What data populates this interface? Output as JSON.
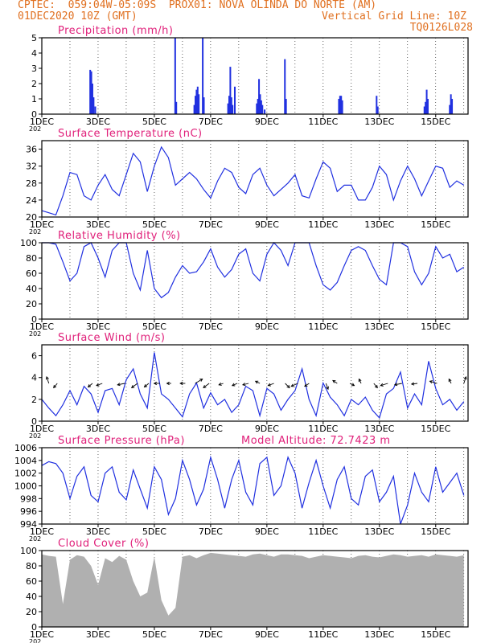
{
  "header": {
    "line1_left": "CPTEC:  059:04W-05:09S  PROX01: NOVA OLINDA DO NORTE (AM)",
    "line2_left": "01DEC2020 10Z (GMT)",
    "line2_right": "Vertical Grid Line: 10Z",
    "line3_right": "TQ0126L028"
  },
  "colors": {
    "header": "#e07020",
    "title": "#e0207a",
    "line": "#2030e0",
    "bar": "#2030e0",
    "cloud": "#b0b0b0",
    "grid": "#000000"
  },
  "x_tick_labels": [
    "1DEC",
    "3DEC",
    "5DEC",
    "7DEC",
    "9DEC",
    "11DEC",
    "13DEC",
    "15DEC"
  ],
  "x_tick_days": [
    0,
    2,
    4,
    6,
    8,
    10,
    12,
    14
  ],
  "year_fragment": "202",
  "chart_data": [
    {
      "type": "bar",
      "title": "Precipitation (mm/h)",
      "ylim": [
        0,
        5
      ],
      "yticks": [
        0,
        1,
        2,
        3,
        4,
        5
      ],
      "bars": [
        {
          "day": 1.72,
          "value": 2.9
        },
        {
          "day": 1.76,
          "value": 2.8
        },
        {
          "day": 1.8,
          "value": 2.0
        },
        {
          "day": 1.84,
          "value": 1.1
        },
        {
          "day": 1.9,
          "value": 0.5
        },
        {
          "day": 4.74,
          "value": 5.0
        },
        {
          "day": 4.78,
          "value": 0.8
        },
        {
          "day": 5.42,
          "value": 0.6
        },
        {
          "day": 5.46,
          "value": 1.2
        },
        {
          "day": 5.5,
          "value": 1.6
        },
        {
          "day": 5.54,
          "value": 1.8
        },
        {
          "day": 5.58,
          "value": 1.3
        },
        {
          "day": 5.72,
          "value": 5.0
        },
        {
          "day": 5.76,
          "value": 1.1
        },
        {
          "day": 6.62,
          "value": 0.7
        },
        {
          "day": 6.66,
          "value": 1.2
        },
        {
          "day": 6.7,
          "value": 3.1
        },
        {
          "day": 6.74,
          "value": 1.1
        },
        {
          "day": 6.78,
          "value": 0.6
        },
        {
          "day": 6.86,
          "value": 1.8
        },
        {
          "day": 7.64,
          "value": 0.7
        },
        {
          "day": 7.68,
          "value": 1.0
        },
        {
          "day": 7.72,
          "value": 2.3
        },
        {
          "day": 7.76,
          "value": 1.3
        },
        {
          "day": 7.8,
          "value": 0.9
        },
        {
          "day": 7.84,
          "value": 0.6
        },
        {
          "day": 7.92,
          "value": 0.3
        },
        {
          "day": 8.64,
          "value": 3.6
        },
        {
          "day": 8.68,
          "value": 1.0
        },
        {
          "day": 10.56,
          "value": 1.0
        },
        {
          "day": 10.6,
          "value": 1.2
        },
        {
          "day": 10.64,
          "value": 1.2
        },
        {
          "day": 10.68,
          "value": 0.9
        },
        {
          "day": 11.9,
          "value": 1.2
        },
        {
          "day": 11.94,
          "value": 0.5
        },
        {
          "day": 13.6,
          "value": 0.5
        },
        {
          "day": 13.64,
          "value": 0.8
        },
        {
          "day": 13.68,
          "value": 1.6
        },
        {
          "day": 13.72,
          "value": 1.0
        },
        {
          "day": 14.5,
          "value": 0.6
        },
        {
          "day": 14.54,
          "value": 1.3
        },
        {
          "day": 14.58,
          "value": 1.0
        }
      ]
    },
    {
      "type": "line",
      "title": "Surface Temperature (nC)",
      "ylim": [
        20,
        38
      ],
      "yticks": [
        20,
        24,
        28,
        32,
        36
      ],
      "x": [
        0.0,
        0.25,
        0.5,
        0.75,
        1.0,
        1.25,
        1.5,
        1.75,
        2.0,
        2.25,
        2.5,
        2.75,
        3.0,
        3.25,
        3.5,
        3.75,
        4.0,
        4.25,
        4.5,
        4.75,
        5.0,
        5.25,
        5.5,
        5.75,
        6.0,
        6.25,
        6.5,
        6.75,
        7.0,
        7.25,
        7.5,
        7.75,
        8.0,
        8.25,
        8.5,
        8.75,
        9.0,
        9.25,
        9.5,
        9.75,
        10.0,
        10.25,
        10.5,
        10.75,
        11.0,
        11.25,
        11.5,
        11.75,
        12.0,
        12.25,
        12.5,
        12.75,
        13.0,
        13.25,
        13.5,
        13.75,
        14.0,
        14.25,
        14.5,
        14.75,
        15.0
      ],
      "values": [
        21.5,
        21.0,
        20.5,
        25.0,
        30.5,
        30.0,
        25.0,
        24.0,
        27.5,
        30.0,
        26.5,
        25.0,
        30.0,
        35.0,
        33.0,
        26.0,
        32.0,
        36.5,
        34.0,
        27.5,
        29.0,
        30.5,
        29.0,
        26.5,
        24.5,
        28.5,
        31.5,
        30.5,
        27.0,
        25.5,
        30.0,
        31.5,
        27.5,
        25.0,
        26.5,
        28.0,
        30.0,
        25.0,
        24.5,
        29.0,
        33.0,
        31.5,
        26.0,
        27.5,
        27.5,
        24.0,
        24.0,
        27.0,
        32.0,
        30.0,
        24.0,
        28.5,
        32.0,
        29.0,
        25.0,
        28.5,
        32.0,
        31.5,
        27.0,
        28.5,
        27.5
      ]
    },
    {
      "type": "line",
      "title": "Relative Humidity (%)",
      "ylim": [
        0,
        100
      ],
      "yticks": [
        0,
        20,
        40,
        60,
        80,
        100
      ],
      "x": [
        0.0,
        0.25,
        0.5,
        0.75,
        1.0,
        1.25,
        1.5,
        1.75,
        2.0,
        2.25,
        2.5,
        2.75,
        3.0,
        3.25,
        3.5,
        3.75,
        4.0,
        4.25,
        4.5,
        4.75,
        5.0,
        5.25,
        5.5,
        5.75,
        6.0,
        6.25,
        6.5,
        6.75,
        7.0,
        7.25,
        7.5,
        7.75,
        8.0,
        8.25,
        8.5,
        8.75,
        9.0,
        9.25,
        9.5,
        9.75,
        10.0,
        10.25,
        10.5,
        10.75,
        11.0,
        11.25,
        11.5,
        11.75,
        12.0,
        12.25,
        12.5,
        12.75,
        13.0,
        13.25,
        13.5,
        13.75,
        14.0,
        14.25,
        14.5,
        14.75,
        15.0
      ],
      "values": [
        100,
        100,
        98,
        75,
        50,
        60,
        95,
        100,
        80,
        55,
        90,
        100,
        100,
        60,
        38,
        90,
        40,
        28,
        35,
        55,
        70,
        60,
        62,
        75,
        92,
        68,
        55,
        65,
        85,
        92,
        60,
        50,
        85,
        100,
        90,
        70,
        100,
        100,
        100,
        70,
        45,
        38,
        48,
        70,
        90,
        95,
        90,
        70,
        52,
        45,
        100,
        100,
        95,
        62,
        45,
        60,
        95,
        80,
        85,
        62,
        68
      ]
    },
    {
      "type": "line",
      "title": "Surface Wind (m/s)",
      "ylim": [
        0,
        7
      ],
      "yticks": [
        0,
        2,
        4,
        6
      ],
      "x": [
        0.0,
        0.25,
        0.5,
        0.75,
        1.0,
        1.25,
        1.5,
        1.75,
        2.0,
        2.25,
        2.5,
        2.75,
        3.0,
        3.25,
        3.5,
        3.75,
        4.0,
        4.25,
        4.5,
        4.75,
        5.0,
        5.25,
        5.5,
        5.75,
        6.0,
        6.25,
        6.5,
        6.75,
        7.0,
        7.25,
        7.5,
        7.75,
        8.0,
        8.25,
        8.5,
        8.75,
        9.0,
        9.25,
        9.5,
        9.75,
        10.0,
        10.25,
        10.5,
        10.75,
        11.0,
        11.25,
        11.5,
        11.75,
        12.0,
        12.25,
        12.5,
        12.75,
        13.0,
        13.25,
        13.5,
        13.75,
        14.0,
        14.25,
        14.5,
        14.75,
        15.0
      ],
      "values": [
        2.0,
        1.2,
        0.5,
        1.5,
        2.8,
        1.5,
        3.2,
        2.5,
        0.8,
        2.8,
        3.0,
        1.5,
        3.8,
        4.8,
        2.5,
        1.2,
        6.3,
        2.5,
        2.0,
        1.2,
        0.4,
        2.5,
        3.5,
        1.2,
        2.6,
        1.5,
        2.0,
        0.8,
        1.5,
        3.2,
        2.8,
        0.5,
        3.0,
        2.5,
        1.0,
        2.0,
        2.8,
        4.8,
        2.0,
        0.5,
        3.5,
        2.2,
        1.5,
        0.5,
        2.0,
        1.5,
        2.2,
        1.0,
        0.3,
        2.5,
        3.0,
        4.5,
        1.2,
        2.5,
        1.5,
        5.5,
        3.0,
        1.5,
        2.0,
        1.0,
        1.8
      ],
      "arrows": [
        {
          "day": 0.25,
          "dx": -0.3,
          "dy": -0.9
        },
        {
          "day": 0.55,
          "dx": -0.5,
          "dy": 0.6
        },
        {
          "day": 1.8,
          "dx": -0.6,
          "dy": 0.5
        },
        {
          "day": 2.15,
          "dx": -0.8,
          "dy": 0.3
        },
        {
          "day": 2.95,
          "dx": -1.0,
          "dy": 0.2
        },
        {
          "day": 3.4,
          "dx": -0.8,
          "dy": 0.6
        },
        {
          "day": 3.8,
          "dx": -0.6,
          "dy": 0.5
        },
        {
          "day": 4.2,
          "dx": -0.8,
          "dy": 0.0
        },
        {
          "day": 4.6,
          "dx": -0.6,
          "dy": 0.0
        },
        {
          "day": 5.1,
          "dx": -0.7,
          "dy": 0.0
        },
        {
          "day": 5.45,
          "dx": 1.0,
          "dy": -0.6
        },
        {
          "day": 5.95,
          "dx": -0.8,
          "dy": 0.6
        },
        {
          "day": 6.45,
          "dx": -0.6,
          "dy": 0.2
        },
        {
          "day": 6.95,
          "dx": -0.7,
          "dy": 0.3
        },
        {
          "day": 7.35,
          "dx": -0.8,
          "dy": 0.2
        },
        {
          "day": 7.75,
          "dx": -0.6,
          "dy": -0.3
        },
        {
          "day": 8.25,
          "dx": -0.8,
          "dy": 0.3
        },
        {
          "day": 8.65,
          "dx": 0.6,
          "dy": 0.6
        },
        {
          "day": 9.1,
          "dx": -0.9,
          "dy": 0.4
        },
        {
          "day": 9.5,
          "dx": -0.6,
          "dy": 0.4
        },
        {
          "day": 10.1,
          "dx": 0.3,
          "dy": 0.8
        },
        {
          "day": 10.5,
          "dx": -0.6,
          "dy": -0.4
        },
        {
          "day": 10.95,
          "dx": 0.6,
          "dy": 0.3
        },
        {
          "day": 11.35,
          "dx": -0.3,
          "dy": -0.6
        },
        {
          "day": 11.8,
          "dx": 0.5,
          "dy": 0.6
        },
        {
          "day": 12.3,
          "dx": -1.0,
          "dy": 0.3
        },
        {
          "day": 12.8,
          "dx": -1.0,
          "dy": 0.2
        },
        {
          "day": 13.35,
          "dx": -0.8,
          "dy": 0.1
        },
        {
          "day": 14.05,
          "dx": -1.0,
          "dy": -0.3
        },
        {
          "day": 14.55,
          "dx": -0.3,
          "dy": -0.6
        },
        {
          "day": 15.0,
          "dx": 0.3,
          "dy": -0.9
        }
      ]
    },
    {
      "type": "line",
      "title": "Surface Pressure (hPa)",
      "annotation": "Model Altitude: 72.7423 m",
      "ylim": [
        994,
        1006
      ],
      "yticks": [
        994,
        996,
        998,
        1000,
        1002,
        1004,
        1006
      ],
      "x": [
        0.0,
        0.25,
        0.5,
        0.75,
        1.0,
        1.25,
        1.5,
        1.75,
        2.0,
        2.25,
        2.5,
        2.75,
        3.0,
        3.25,
        3.5,
        3.75,
        4.0,
        4.25,
        4.5,
        4.75,
        5.0,
        5.25,
        5.5,
        5.75,
        6.0,
        6.25,
        6.5,
        6.75,
        7.0,
        7.25,
        7.5,
        7.75,
        8.0,
        8.25,
        8.5,
        8.75,
        9.0,
        9.25,
        9.5,
        9.75,
        10.0,
        10.25,
        10.5,
        10.75,
        11.0,
        11.25,
        11.5,
        11.75,
        12.0,
        12.25,
        12.5,
        12.75,
        13.0,
        13.25,
        13.5,
        13.75,
        14.0,
        14.25,
        14.5,
        14.75,
        15.0
      ],
      "values": [
        1003.2,
        1003.8,
        1003.5,
        1002.0,
        998.0,
        1001.5,
        1003.0,
        998.5,
        997.5,
        1002.0,
        1003.0,
        999.0,
        997.8,
        1002.5,
        999.5,
        996.5,
        1003.0,
        1001.0,
        995.5,
        998.0,
        1004.0,
        1001.0,
        997.0,
        999.5,
        1004.5,
        1001.0,
        996.5,
        1001.0,
        1004.0,
        999.0,
        997.0,
        1003.5,
        1004.5,
        998.5,
        1000.0,
        1004.5,
        1002.0,
        996.5,
        1000.5,
        1004.0,
        1000.0,
        996.5,
        1001.0,
        1003.0,
        998.0,
        997.0,
        1001.5,
        1002.5,
        997.5,
        999.0,
        1001.5,
        994.0,
        997.0,
        1002.0,
        999.0,
        997.5,
        1003.0,
        999.0,
        1000.5,
        1002.0,
        998.5
      ]
    },
    {
      "type": "bar",
      "title": "Cloud Cover (%)",
      "ylim": [
        0,
        100
      ],
      "yticks": [
        0,
        20,
        40,
        60,
        80,
        100
      ],
      "x": [
        0.0,
        0.25,
        0.5,
        0.75,
        1.0,
        1.25,
        1.5,
        1.75,
        2.0,
        2.25,
        2.5,
        2.75,
        3.0,
        3.25,
        3.5,
        3.75,
        4.0,
        4.25,
        4.5,
        4.75,
        5.0,
        5.25,
        5.5,
        5.75,
        6.0,
        6.25,
        6.5,
        6.75,
        7.0,
        7.25,
        7.5,
        7.75,
        8.0,
        8.25,
        8.5,
        8.75,
        9.0,
        9.25,
        9.5,
        9.75,
        10.0,
        10.25,
        10.5,
        10.75,
        11.0,
        11.25,
        11.5,
        11.75,
        12.0,
        12.25,
        12.5,
        12.75,
        13.0,
        13.25,
        13.5,
        13.75,
        14.0,
        14.25,
        14.5,
        14.75,
        15.0
      ],
      "values": [
        95,
        93,
        92,
        30,
        88,
        94,
        92,
        80,
        55,
        90,
        85,
        93,
        88,
        60,
        40,
        45,
        92,
        35,
        15,
        25,
        92,
        94,
        90,
        94,
        97,
        96,
        95,
        94,
        93,
        92,
        95,
        96,
        94,
        92,
        95,
        95,
        94,
        93,
        90,
        92,
        94,
        93,
        92,
        91,
        90,
        93,
        94,
        92,
        91,
        93,
        95,
        94,
        92,
        93,
        94,
        92,
        95,
        94,
        93,
        92,
        94
      ]
    }
  ]
}
